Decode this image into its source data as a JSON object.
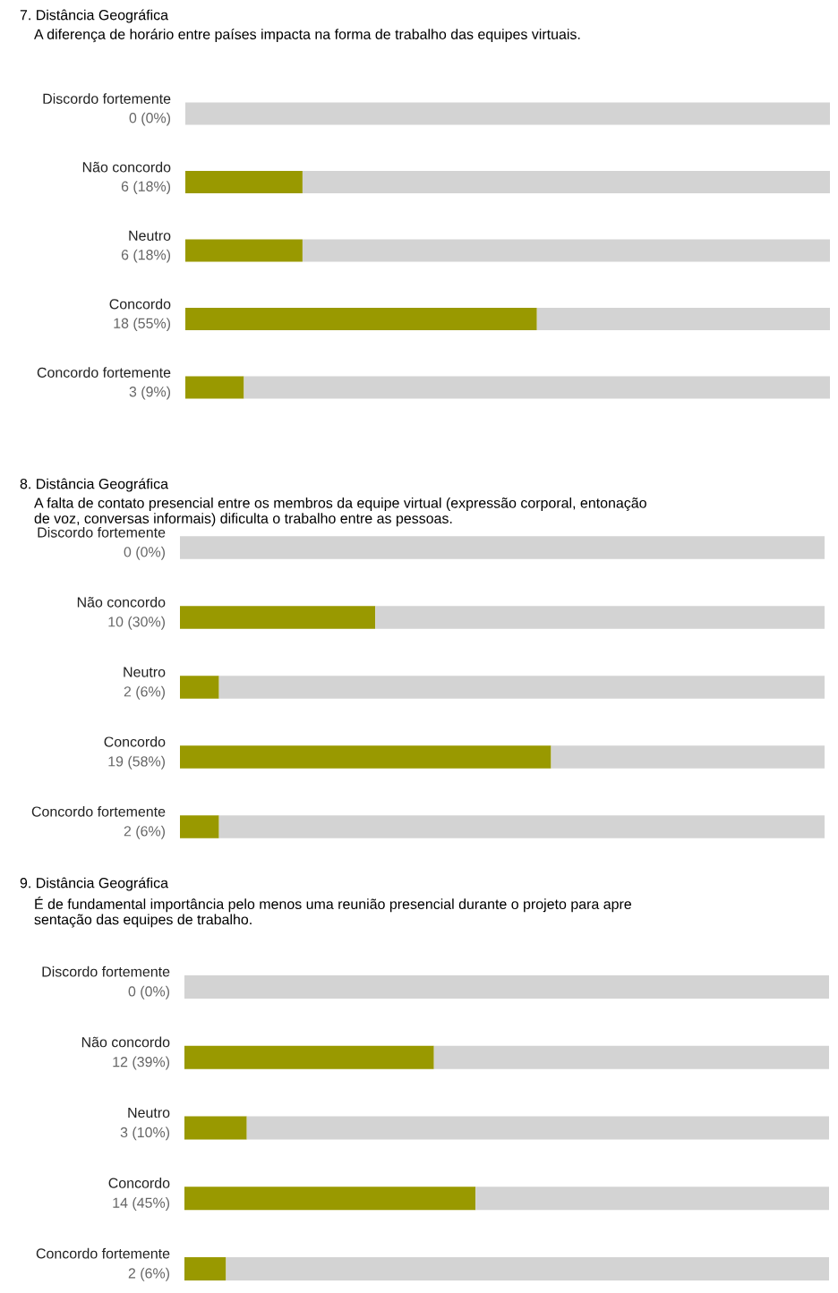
{
  "chart_data": [
    {
      "type": "bar",
      "orientation": "horizontal",
      "stacked": true,
      "title": "7. Distância Geográfica",
      "subtitle": "A diferença de horário entre países impacta na forma de trabalho das equipes virtuais.",
      "categories": [
        "Discordo fortemente",
        "Não concordo",
        "Neutro",
        "Concordo",
        "Concordo fortemente"
      ],
      "series": [
        {
          "color": "#999900",
          "values": [
            0,
            6,
            6,
            18,
            3
          ],
          "value_labels": [
            "0 (0%)",
            "6 (18%)",
            "6 (18%)",
            "18 (55%)",
            "3 (9%)"
          ]
        },
        {
          "color": "#d3d3d3",
          "values": [
            33,
            27,
            27,
            15,
            30
          ]
        }
      ],
      "xlim": [
        0,
        33
      ],
      "tick_labels": false
    },
    {
      "type": "bar",
      "orientation": "horizontal",
      "stacked": true,
      "title": "8. Distância Geográfica",
      "subtitle": "A falta de contato presencial entre os membros da equipe virtual (expressão corporal, entonação\nde voz, conversas informais) dificulta o trabalho entre as pessoas.",
      "categories": [
        "Discordo fortemente",
        "Não concordo",
        "Neutro",
        "Concordo",
        "Concordo fortemente"
      ],
      "series": [
        {
          "color": "#999900",
          "values": [
            0,
            10,
            2,
            19,
            2
          ],
          "value_labels": [
            "0 (0%)",
            "10 (30%)",
            "2 (6%)",
            "19 (58%)",
            "2 (6%)"
          ]
        },
        {
          "color": "#d3d3d3",
          "values": [
            33,
            23,
            31,
            14,
            31
          ]
        }
      ],
      "xlim": [
        0,
        33
      ],
      "tick_labels": false
    },
    {
      "type": "bar",
      "orientation": "horizontal",
      "stacked": true,
      "title": "9. Distância Geográfica",
      "subtitle": "É de fundamental importância pelo menos uma reunião presencial durante o projeto para apre\nsentação das equipes de trabalho.",
      "categories": [
        "Discordo fortemente",
        "Não concordo",
        "Neutro",
        "Concordo",
        "Concordo fortemente"
      ],
      "series": [
        {
          "color": "#999900",
          "values": [
            0,
            12,
            3,
            14,
            2
          ],
          "value_labels": [
            "0 (0%)",
            "12 (39%)",
            "3 (10%)",
            "14 (45%)",
            "2 (6%)"
          ]
        },
        {
          "color": "#d3d3d3",
          "values": [
            31,
            19,
            28,
            17,
            29
          ]
        }
      ],
      "xlim": [
        0,
        31
      ],
      "tick_labels": false
    }
  ]
}
